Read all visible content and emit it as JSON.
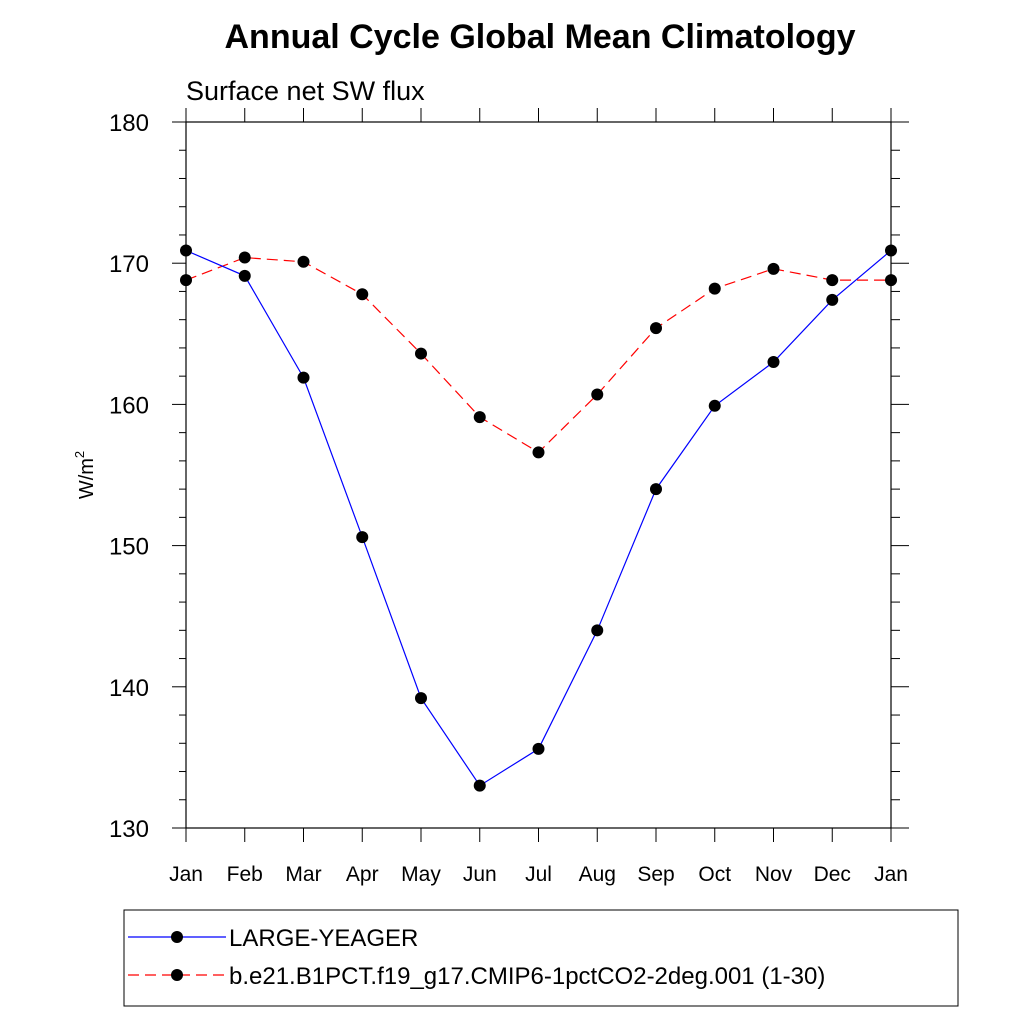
{
  "chart_data": {
    "type": "line",
    "title": "Annual Cycle Global Mean Climatology",
    "subtitle": "Surface net SW flux",
    "ylabel": "W/m",
    "ylabel_superscript": "2",
    "ylim": [
      130,
      180
    ],
    "yticks": [
      130,
      140,
      150,
      160,
      170,
      180
    ],
    "categories": [
      "Jan",
      "Feb",
      "Mar",
      "Apr",
      "May",
      "Jun",
      "Jul",
      "Aug",
      "Sep",
      "Oct",
      "Nov",
      "Dec",
      "Jan"
    ],
    "grid": false,
    "legend_position": "bottom",
    "series": [
      {
        "name": "LARGE-YEAGER",
        "color": "#0000ff",
        "dash": "solid",
        "values": [
          170.9,
          169.1,
          161.9,
          150.6,
          139.2,
          133.0,
          135.6,
          144.0,
          154.0,
          159.9,
          163.0,
          167.4,
          170.9
        ]
      },
      {
        "name": "b.e21.B1PCT.f19_g17.CMIP6-1pctCO2-2deg.001 (1-30)",
        "color": "#ff0000",
        "dash": "dashed",
        "values": [
          168.8,
          170.4,
          170.1,
          167.8,
          163.6,
          159.1,
          156.6,
          160.7,
          165.4,
          168.2,
          169.6,
          168.8,
          168.8
        ]
      }
    ]
  }
}
